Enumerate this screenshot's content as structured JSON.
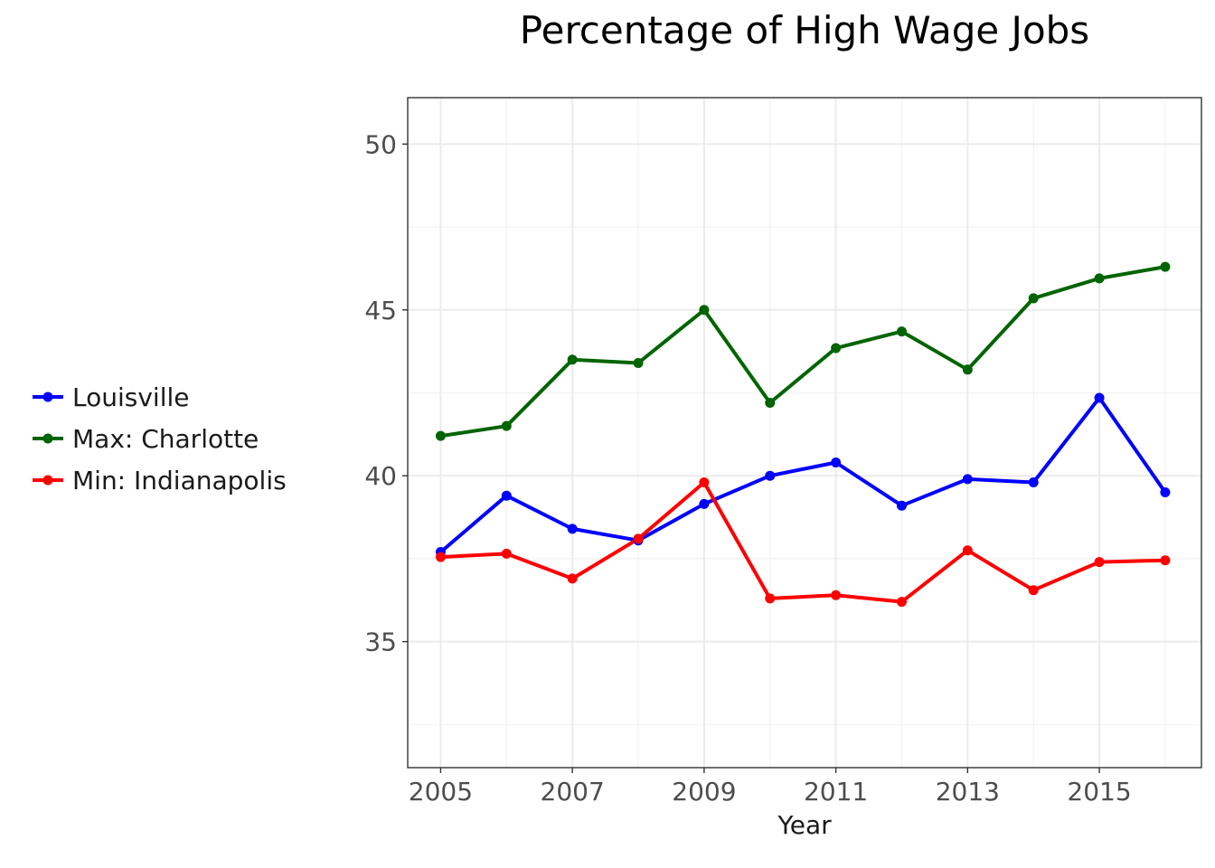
{
  "chart_data": {
    "type": "line",
    "title": "Percentage of High Wage Jobs",
    "xlabel": "Year",
    "ylabel": "",
    "x": [
      2005,
      2006,
      2007,
      2008,
      2009,
      2010,
      2011,
      2012,
      2013,
      2014,
      2015,
      2016
    ],
    "xlim": [
      2004.5,
      2016.55
    ],
    "ylim": [
      31.2,
      51.4
    ],
    "x_major_ticks": [
      2005,
      2007,
      2009,
      2011,
      2013,
      2015
    ],
    "x_minor_ticks": [
      2006,
      2008,
      2010,
      2012,
      2014,
      2016
    ],
    "y_major_ticks": [
      35,
      40,
      45,
      50
    ],
    "y_minor_ticks": [
      32.5,
      37.5,
      42.5,
      47.5
    ],
    "grid": true,
    "legend_position": "left",
    "series": [
      {
        "name": "Louisville",
        "color": "#0000ff",
        "values": [
          37.7,
          39.4,
          38.4,
          38.05,
          39.15,
          40.0,
          40.4,
          39.1,
          39.9,
          39.8,
          42.35,
          39.5
        ]
      },
      {
        "name": "Max: Charlotte",
        "color": "#006400",
        "values": [
          41.2,
          41.5,
          43.5,
          43.4,
          45.0,
          42.2,
          43.85,
          44.35,
          43.2,
          45.35,
          45.95,
          46.3
        ]
      },
      {
        "name": "Min: Indianapolis",
        "color": "#ff0000",
        "values": [
          37.55,
          37.65,
          36.9,
          38.1,
          39.8,
          36.3,
          36.4,
          36.2,
          37.75,
          36.55,
          37.4,
          37.45
        ]
      }
    ]
  }
}
